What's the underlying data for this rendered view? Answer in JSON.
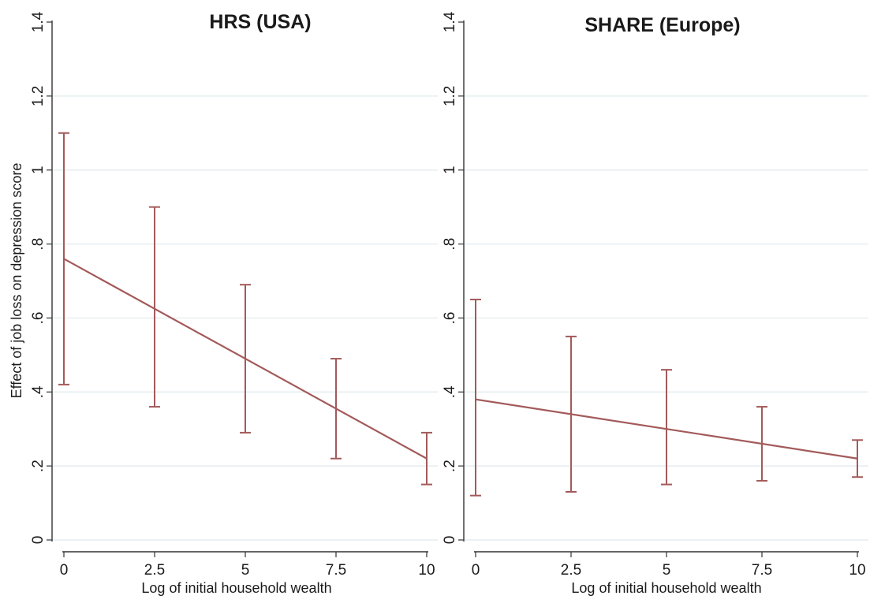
{
  "colors": {
    "series": "#a35a5a",
    "grid": "#dfe9ec",
    "axis": "#333333"
  },
  "chart_data": [
    {
      "type": "line",
      "title": "HRS (USA)",
      "xlabel": "Log of initial household  wealth",
      "ylabel": "Effect of job loss on depression score",
      "xlim": [
        0,
        10
      ],
      "ylim": [
        0,
        1.4
      ],
      "xticks": [
        0,
        2.5,
        5,
        7.5,
        10
      ],
      "xtick_labels": [
        "0",
        "2.5",
        "5",
        "7.5",
        "10"
      ],
      "yticks": [
        0,
        0.2,
        0.4,
        0.6,
        0.8,
        1,
        1.2,
        1.4
      ],
      "ytick_labels": [
        "0",
        ".2",
        ".4",
        ".6",
        ".8",
        "1",
        "1.2",
        "1.4"
      ],
      "grid": true,
      "line": {
        "x": [
          0,
          10
        ],
        "y": [
          0.76,
          0.22
        ]
      },
      "error_bars": [
        {
          "x": 0,
          "low": 0.42,
          "high": 1.1
        },
        {
          "x": 2.5,
          "low": 0.36,
          "high": 0.9
        },
        {
          "x": 5,
          "low": 0.29,
          "high": 0.69
        },
        {
          "x": 7.5,
          "low": 0.22,
          "high": 0.49
        },
        {
          "x": 10,
          "low": 0.15,
          "high": 0.29
        }
      ]
    },
    {
      "type": "line",
      "title": "SHARE (Europe)",
      "xlabel": "Log of initial household  wealth",
      "ylabel": "",
      "xlim": [
        0,
        10
      ],
      "ylim": [
        0,
        1.4
      ],
      "xticks": [
        0,
        2.5,
        5,
        7.5,
        10
      ],
      "xtick_labels": [
        "0",
        "2.5",
        "5",
        "7.5",
        "10"
      ],
      "yticks": [
        0,
        0.2,
        0.4,
        0.6,
        0.8,
        1,
        1.2,
        1.4
      ],
      "ytick_labels": [
        "0",
        ".2",
        ".4",
        ".6",
        ".8",
        "1",
        "1.2",
        "1.4"
      ],
      "grid": true,
      "line": {
        "x": [
          0,
          10
        ],
        "y": [
          0.38,
          0.22
        ]
      },
      "error_bars": [
        {
          "x": 0,
          "low": 0.12,
          "high": 0.65
        },
        {
          "x": 2.5,
          "low": 0.13,
          "high": 0.55
        },
        {
          "x": 5,
          "low": 0.15,
          "high": 0.46
        },
        {
          "x": 7.5,
          "low": 0.16,
          "high": 0.36
        },
        {
          "x": 10,
          "low": 0.17,
          "high": 0.27
        }
      ]
    }
  ]
}
